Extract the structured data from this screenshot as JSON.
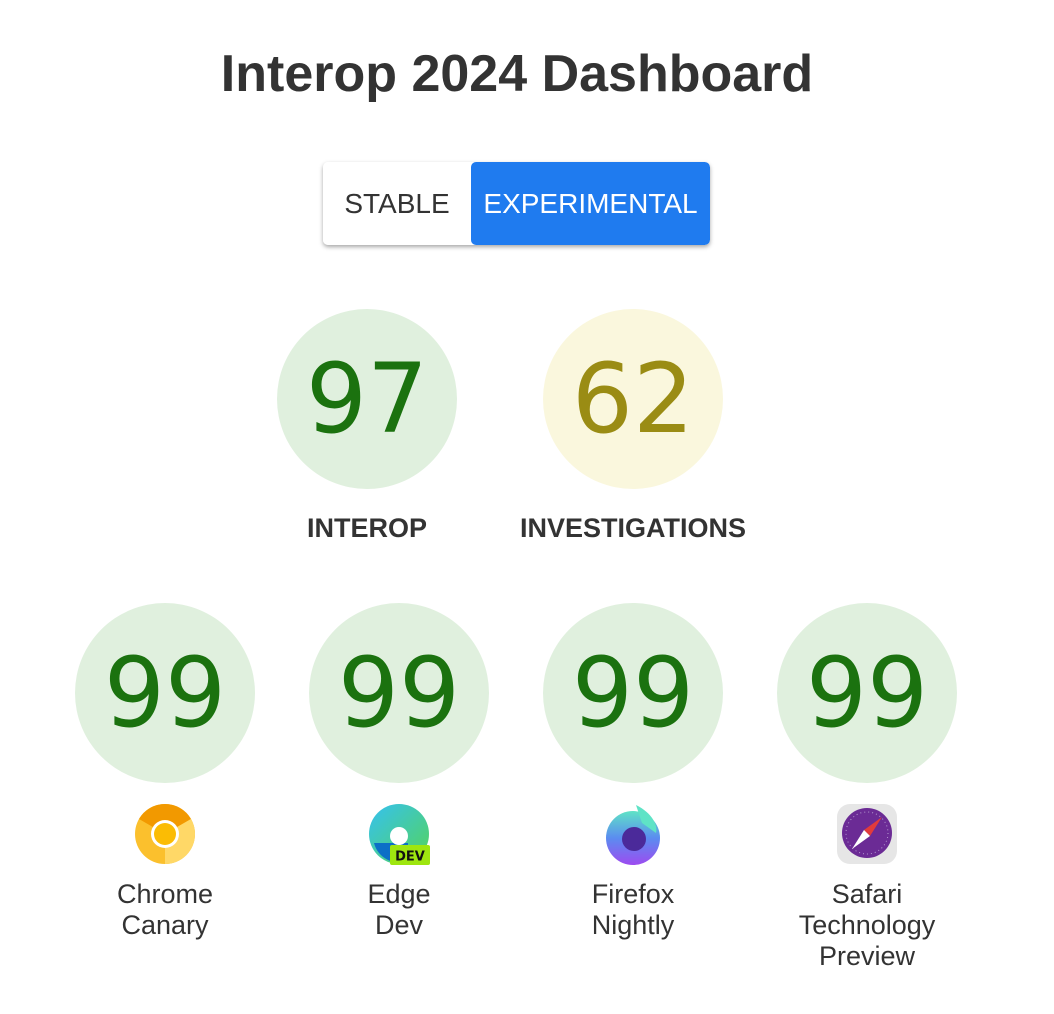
{
  "title": "Interop 2024 Dashboard",
  "toggle": {
    "stable": "STABLE",
    "experimental": "EXPERIMENTAL",
    "selected": "EXPERIMENTAL"
  },
  "summary": [
    {
      "label": "INTEROP",
      "score": "97",
      "status": "good"
    },
    {
      "label": "INVESTIGATIONS",
      "score": "62",
      "status": "medium"
    }
  ],
  "browsers": [
    {
      "line1": "Chrome",
      "line2": "Canary",
      "line3": "",
      "score": "99",
      "icon": "chrome-canary-icon"
    },
    {
      "line1": "Edge",
      "line2": "Dev",
      "line3": "",
      "score": "99",
      "icon": "edge-dev-icon",
      "badge": "DEV"
    },
    {
      "line1": "Firefox",
      "line2": "Nightly",
      "line3": "",
      "score": "99",
      "icon": "firefox-nightly-icon"
    },
    {
      "line1": "Safari",
      "line2": "Technology",
      "line3": "Preview",
      "score": "99",
      "icon": "safari-technology-preview-icon"
    }
  ],
  "colors": {
    "accent": "#1f7bef",
    "good_bg": "#e0f0de",
    "good_text": "#1b720f",
    "medium_bg": "#faf7dd",
    "medium_text": "#9a8c14"
  }
}
